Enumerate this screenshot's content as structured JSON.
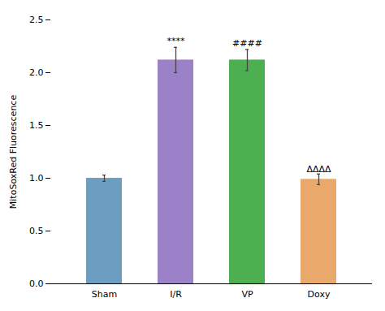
{
  "chart_data": {
    "type": "bar",
    "categories": [
      "Sham",
      "I/R",
      "VP",
      "Doxy"
    ],
    "values": [
      1.0,
      2.12,
      2.12,
      0.99
    ],
    "errors": [
      0.03,
      0.12,
      0.1,
      0.05
    ],
    "error_color": "#444444",
    "colors": [
      "#6D9EC0",
      "#9B82C8",
      "#4CAF50",
      "#E8A96A"
    ],
    "ylabel": "MitoSoxRed Fluorescence",
    "ylim": [
      0,
      2.5
    ],
    "yticks": [
      {
        "value": 0,
        "label": "0.0"
      },
      0.5,
      {
        "value": 1,
        "label": "1.0"
      },
      1.5,
      {
        "value": 2,
        "label": "2.0"
      },
      2.5
    ],
    "annotations": [
      {
        "category": "I/R",
        "text": "****",
        "y": 2.27
      },
      {
        "category": "VP",
        "text": "####",
        "y": 2.25
      },
      {
        "category": "Doxy",
        "text": "ΔΔΔΔ",
        "y": 1.06
      }
    ],
    "grid": false
  }
}
